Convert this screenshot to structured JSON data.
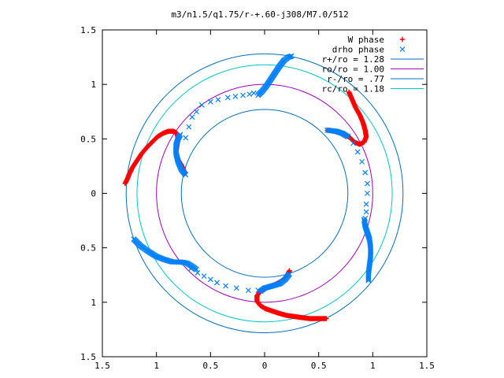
{
  "chart_data": {
    "type": "scatter",
    "title": "m3/n1.5/q1.75/r-+.60-j308/M7.0/512",
    "xlabel": "",
    "ylabel": "",
    "xlim": [
      -1.5,
      1.5
    ],
    "ylim": [
      -1.5,
      1.5
    ],
    "x_tick_labels": [
      "1.5",
      "1",
      "0.5",
      "0",
      "0.5",
      "1",
      "1.5"
    ],
    "y_tick_labels": [
      "1.5",
      "1",
      "0.5",
      "0",
      "0.5",
      "1",
      "1.5"
    ],
    "grid": false,
    "legend_position": "top-right",
    "legend": [
      {
        "label": "W phase",
        "kind": "points",
        "marker": "plus",
        "color": "#ff0000"
      },
      {
        "label": "drho phase",
        "kind": "points",
        "marker": "x",
        "color": "#0080ff"
      },
      {
        "label": "r+/ro = 1.28",
        "kind": "line",
        "color": "#0070c0"
      },
      {
        "label": "ro/ro = 1.00",
        "kind": "line",
        "color": "#a000c0"
      },
      {
        "label": "r-/ro = .77",
        "kind": "line",
        "color": "#0070c0"
      },
      {
        "label": "rc/ro = 1.18",
        "kind": "line",
        "color": "#00c8c8"
      }
    ],
    "circles": [
      {
        "name": "r+/ro = 1.28",
        "radius": 1.28,
        "color": "#0070c0"
      },
      {
        "name": "ro/ro = 1.00",
        "radius": 1.0,
        "color": "#a000c0"
      },
      {
        "name": "r-/ro = .77",
        "radius": 0.77,
        "color": "#0070c0"
      },
      {
        "name": "rc/ro = 1.18",
        "radius": 1.18,
        "color": "#00c8c8"
      }
    ],
    "w_phase_curves": [
      [
        [
          -1.29,
          0.09
        ],
        [
          -1.27,
          0.13
        ],
        [
          -1.25,
          0.18
        ],
        [
          -1.22,
          0.24
        ],
        [
          -1.18,
          0.3
        ],
        [
          -1.14,
          0.36
        ],
        [
          -1.09,
          0.42
        ],
        [
          -1.04,
          0.47
        ],
        [
          -0.99,
          0.52
        ],
        [
          -0.94,
          0.55
        ],
        [
          -0.89,
          0.57
        ],
        [
          -0.84,
          0.57
        ],
        [
          -0.81,
          0.55
        ],
        [
          -0.8,
          0.5
        ],
        [
          -0.81,
          0.44
        ],
        [
          -0.82,
          0.38
        ],
        [
          -0.8,
          0.31
        ],
        [
          -0.77,
          0.26
        ],
        [
          -0.75,
          0.22
        ],
        [
          -0.74,
          0.18
        ]
      ],
      [
        [
          0.57,
          -1.15
        ],
        [
          0.5,
          -1.15
        ],
        [
          0.42,
          -1.15
        ],
        [
          0.34,
          -1.14
        ],
        [
          0.27,
          -1.13
        ],
        [
          0.2,
          -1.12
        ],
        [
          0.13,
          -1.1
        ],
        [
          0.07,
          -1.08
        ],
        [
          0.01,
          -1.06
        ],
        [
          -0.04,
          -1.03
        ],
        [
          -0.07,
          -0.99
        ],
        [
          -0.07,
          -0.94
        ],
        [
          -0.04,
          -0.9
        ],
        [
          0.01,
          -0.87
        ],
        [
          0.07,
          -0.85
        ],
        [
          0.13,
          -0.82
        ],
        [
          0.18,
          -0.79
        ],
        [
          0.21,
          -0.75
        ],
        [
          0.23,
          -0.71
        ]
      ],
      [
        [
          0.78,
          0.93
        ],
        [
          0.81,
          0.86
        ],
        [
          0.84,
          0.79
        ],
        [
          0.88,
          0.72
        ],
        [
          0.91,
          0.65
        ],
        [
          0.93,
          0.58
        ],
        [
          0.94,
          0.52
        ],
        [
          0.92,
          0.47
        ],
        [
          0.88,
          0.45
        ],
        [
          0.83,
          0.47
        ],
        [
          0.79,
          0.51
        ],
        [
          0.74,
          0.54
        ],
        [
          0.69,
          0.56
        ],
        [
          0.64,
          0.57
        ],
        [
          0.58,
          0.58
        ]
      ]
    ],
    "drho_phase_curves": [
      [
        [
          -1.21,
          -0.42
        ],
        [
          -1.15,
          -0.48
        ],
        [
          -1.08,
          -0.53
        ],
        [
          -1.0,
          -0.58
        ],
        [
          -0.92,
          -0.61
        ],
        [
          -0.85,
          -0.63
        ],
        [
          -0.78,
          -0.63
        ],
        [
          -0.72,
          -0.64
        ],
        [
          -0.67,
          -0.67
        ],
        [
          -0.63,
          -0.7
        ]
      ],
      [
        [
          -0.06,
          0.9
        ],
        [
          -0.02,
          0.94
        ],
        [
          0.02,
          0.99
        ],
        [
          0.06,
          1.05
        ],
        [
          0.1,
          1.11
        ],
        [
          0.14,
          1.17
        ],
        [
          0.18,
          1.22
        ],
        [
          0.22,
          1.25
        ],
        [
          0.25,
          1.26
        ]
      ],
      [
        [
          -0.73,
          0.17
        ],
        [
          -0.77,
          0.22
        ],
        [
          -0.8,
          0.29
        ],
        [
          -0.82,
          0.37
        ],
        [
          -0.82,
          0.44
        ],
        [
          -0.8,
          0.5
        ],
        [
          -0.78,
          0.54
        ]
      ],
      [
        [
          0.58,
          0.58
        ],
        [
          0.66,
          0.57
        ],
        [
          0.72,
          0.55
        ],
        [
          0.77,
          0.52
        ]
      ],
      [
        [
          0.92,
          -0.24
        ],
        [
          0.93,
          -0.3
        ],
        [
          0.95,
          -0.36
        ],
        [
          0.97,
          -0.42
        ],
        [
          0.98,
          -0.5
        ],
        [
          0.98,
          -0.58
        ],
        [
          0.97,
          -0.66
        ],
        [
          0.96,
          -0.74
        ],
        [
          0.96,
          -0.8
        ]
      ],
      [
        [
          0.23,
          -0.74
        ],
        [
          0.19,
          -0.79
        ],
        [
          0.14,
          -0.83
        ],
        [
          0.07,
          -0.85
        ],
        [
          0.0,
          -0.87
        ],
        [
          -0.04,
          -0.9
        ]
      ]
    ],
    "drho_phase_points": [
      [
        -0.68,
        -0.69
      ],
      [
        -0.62,
        -0.73
      ],
      [
        -0.56,
        -0.76
      ],
      [
        -0.5,
        -0.79
      ],
      [
        -0.44,
        -0.82
      ],
      [
        -0.36,
        -0.85
      ],
      [
        -0.26,
        -0.87
      ],
      [
        -0.15,
        -0.89
      ],
      [
        -0.06,
        -0.89
      ],
      [
        -0.58,
        0.81
      ],
      [
        -0.5,
        0.84
      ],
      [
        -0.43,
        0.86
      ],
      [
        -0.34,
        0.88
      ],
      [
        -0.27,
        0.89
      ],
      [
        -0.2,
        0.9
      ],
      [
        -0.14,
        0.91
      ],
      [
        -0.1,
        0.92
      ],
      [
        -0.73,
        0.51
      ],
      [
        -0.7,
        0.61
      ],
      [
        -0.67,
        0.7
      ],
      [
        -0.63,
        0.75
      ],
      [
        0.77,
        0.52
      ],
      [
        0.82,
        0.46
      ],
      [
        0.86,
        0.38
      ],
      [
        0.9,
        0.29
      ],
      [
        0.93,
        0.19
      ],
      [
        0.95,
        0.09
      ],
      [
        0.95,
        0.0
      ],
      [
        0.94,
        -0.1
      ],
      [
        0.94,
        -0.17
      ],
      [
        0.93,
        -0.23
      ]
    ]
  }
}
